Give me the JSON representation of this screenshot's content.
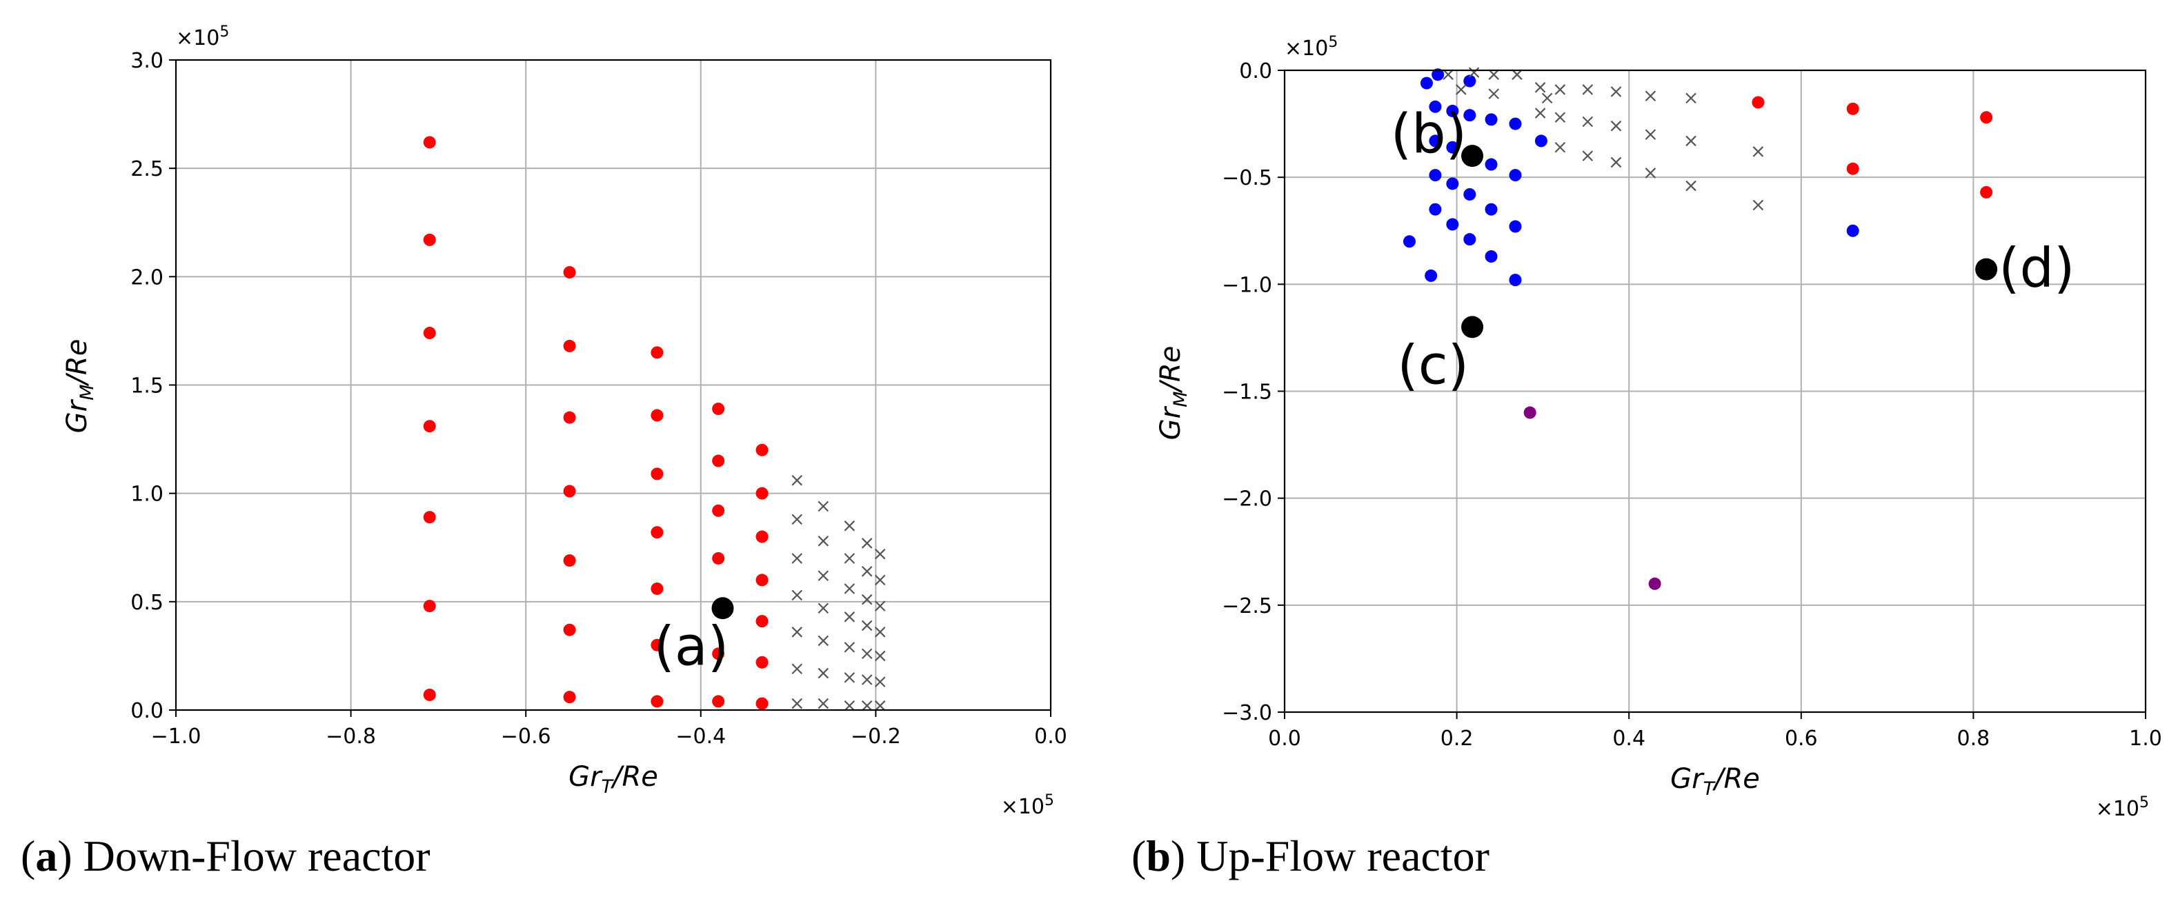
{
  "chart_data": [
    {
      "id": "a",
      "type": "scatter",
      "caption_letter": "a",
      "caption_text": "Down-Flow reactor",
      "xlabel_main": "Gr",
      "xlabel_sub": "T",
      "xlabel_tail": "/Re",
      "ylabel_main": "Gr",
      "ylabel_sub": "M",
      "ylabel_tail": "/Re",
      "x_multiplier": "×10",
      "x_multiplier_exp": "5",
      "y_multiplier": "×10",
      "y_multiplier_exp": "5",
      "xlim": [
        -1.0,
        0.0
      ],
      "ylim": [
        0.0,
        3.0
      ],
      "xticks": [
        -1.0,
        -0.8,
        -0.6,
        -0.4,
        -0.2,
        0.0
      ],
      "xtick_labels": [
        "−1.0",
        "−0.8",
        "−0.6",
        "−0.4",
        "−0.2",
        "0.0"
      ],
      "yticks": [
        0.0,
        0.5,
        1.0,
        1.5,
        2.0,
        2.5,
        3.0
      ],
      "ytick_labels": [
        "0.0",
        "0.5",
        "1.0",
        "1.5",
        "2.0",
        "2.5",
        "3.0"
      ],
      "grid": true,
      "series": [
        {
          "name": "red",
          "marker": "dot",
          "color": "#ff0000",
          "points": [
            [
              -0.71,
              0.07
            ],
            [
              -0.71,
              0.48
            ],
            [
              -0.71,
              0.89
            ],
            [
              -0.71,
              1.31
            ],
            [
              -0.71,
              1.74
            ],
            [
              -0.71,
              2.17
            ],
            [
              -0.71,
              2.62
            ],
            [
              -0.55,
              0.06
            ],
            [
              -0.55,
              0.37
            ],
            [
              -0.55,
              0.69
            ],
            [
              -0.55,
              1.01
            ],
            [
              -0.55,
              1.35
            ],
            [
              -0.55,
              1.68
            ],
            [
              -0.55,
              2.02
            ],
            [
              -0.45,
              0.04
            ],
            [
              -0.45,
              0.3
            ],
            [
              -0.45,
              0.56
            ],
            [
              -0.45,
              0.82
            ],
            [
              -0.45,
              1.09
            ],
            [
              -0.45,
              1.36
            ],
            [
              -0.45,
              1.65
            ],
            [
              -0.38,
              0.04
            ],
            [
              -0.38,
              0.26
            ],
            [
              -0.38,
              0.7
            ],
            [
              -0.38,
              0.92
            ],
            [
              -0.38,
              1.15
            ],
            [
              -0.38,
              1.39
            ],
            [
              -0.33,
              0.03
            ],
            [
              -0.33,
              0.22
            ],
            [
              -0.33,
              0.41
            ],
            [
              -0.33,
              0.6
            ],
            [
              -0.33,
              0.8
            ],
            [
              -0.33,
              1.0
            ],
            [
              -0.33,
              1.2
            ]
          ]
        },
        {
          "name": "gray-x",
          "marker": "x",
          "color": "#555555",
          "points": [
            [
              -0.29,
              0.03
            ],
            [
              -0.29,
              0.19
            ],
            [
              -0.29,
              0.36
            ],
            [
              -0.29,
              0.53
            ],
            [
              -0.29,
              0.7
            ],
            [
              -0.29,
              0.88
            ],
            [
              -0.29,
              1.06
            ],
            [
              -0.26,
              0.03
            ],
            [
              -0.26,
              0.17
            ],
            [
              -0.26,
              0.32
            ],
            [
              -0.26,
              0.47
            ],
            [
              -0.26,
              0.62
            ],
            [
              -0.26,
              0.78
            ],
            [
              -0.26,
              0.94
            ],
            [
              -0.23,
              0.02
            ],
            [
              -0.23,
              0.15
            ],
            [
              -0.23,
              0.29
            ],
            [
              -0.23,
              0.43
            ],
            [
              -0.23,
              0.56
            ],
            [
              -0.23,
              0.7
            ],
            [
              -0.23,
              0.85
            ],
            [
              -0.21,
              0.02
            ],
            [
              -0.21,
              0.14
            ],
            [
              -0.21,
              0.26
            ],
            [
              -0.21,
              0.39
            ],
            [
              -0.21,
              0.51
            ],
            [
              -0.21,
              0.64
            ],
            [
              -0.21,
              0.77
            ],
            [
              -0.195,
              0.02
            ],
            [
              -0.195,
              0.13
            ],
            [
              -0.195,
              0.25
            ],
            [
              -0.195,
              0.36
            ],
            [
              -0.195,
              0.48
            ],
            [
              -0.195,
              0.6
            ],
            [
              -0.195,
              0.72
            ]
          ]
        }
      ],
      "annotations": [
        {
          "text": "(a)",
          "x": -0.375,
          "y": 0.47
        }
      ]
    },
    {
      "id": "b",
      "type": "scatter",
      "caption_letter": "b",
      "caption_text": "Up-Flow reactor",
      "xlabel_main": "Gr",
      "xlabel_sub": "T",
      "xlabel_tail": "/Re",
      "ylabel_main": "Gr",
      "ylabel_sub": "M",
      "ylabel_tail": "/Re",
      "x_multiplier": "×10",
      "x_multiplier_exp": "5",
      "y_multiplier": "×10",
      "y_multiplier_exp": "5",
      "xlim": [
        0.0,
        1.0
      ],
      "ylim": [
        -3.0,
        0.0
      ],
      "xticks": [
        0.0,
        0.2,
        0.4,
        0.6,
        0.8,
        1.0
      ],
      "xtick_labels": [
        "0.0",
        "0.2",
        "0.4",
        "0.6",
        "0.8",
        "1.0"
      ],
      "yticks": [
        -3.0,
        -2.5,
        -2.0,
        -1.5,
        -1.0,
        -0.5,
        0.0
      ],
      "ytick_labels": [
        "−3.0",
        "−2.5",
        "−2.0",
        "−1.5",
        "−1.0",
        "−0.5",
        "0.0"
      ],
      "grid": true,
      "series": [
        {
          "name": "blue",
          "marker": "dot",
          "color": "#0000ff",
          "points": [
            [
              0.145,
              -0.8
            ],
            [
              0.17,
              -0.96
            ],
            [
              0.165,
              -0.06
            ],
            [
              0.175,
              -0.17
            ],
            [
              0.175,
              -0.33
            ],
            [
              0.175,
              -0.49
            ],
            [
              0.175,
              -0.65
            ],
            [
              0.178,
              -0.02
            ],
            [
              0.195,
              -0.19
            ],
            [
              0.195,
              -0.36
            ],
            [
              0.195,
              -0.53
            ],
            [
              0.195,
              -0.72
            ],
            [
              0.215,
              -0.05
            ],
            [
              0.215,
              -0.21
            ],
            [
              0.215,
              -0.58
            ],
            [
              0.215,
              -0.79
            ],
            [
              0.24,
              -0.23
            ],
            [
              0.24,
              -0.44
            ],
            [
              0.24,
              -0.65
            ],
            [
              0.24,
              -0.87
            ],
            [
              0.268,
              -0.25
            ],
            [
              0.268,
              -0.49
            ],
            [
              0.268,
              -0.73
            ],
            [
              0.268,
              -0.98
            ],
            [
              0.298,
              -0.33
            ],
            [
              0.66,
              -0.75
            ]
          ]
        },
        {
          "name": "gray-x",
          "marker": "x",
          "color": "#555555",
          "points": [
            [
              0.19,
              -0.02
            ],
            [
              0.205,
              -0.09
            ],
            [
              0.22,
              -0.01
            ],
            [
              0.243,
              -0.02
            ],
            [
              0.243,
              -0.11
            ],
            [
              0.27,
              -0.02
            ],
            [
              0.297,
              -0.08
            ],
            [
              0.297,
              -0.2
            ],
            [
              0.305,
              -0.13
            ],
            [
              0.32,
              -0.09
            ],
            [
              0.32,
              -0.22
            ],
            [
              0.32,
              -0.36
            ],
            [
              0.352,
              -0.09
            ],
            [
              0.352,
              -0.24
            ],
            [
              0.352,
              -0.4
            ],
            [
              0.385,
              -0.1
            ],
            [
              0.385,
              -0.26
            ],
            [
              0.385,
              -0.43
            ],
            [
              0.425,
              -0.12
            ],
            [
              0.425,
              -0.3
            ],
            [
              0.425,
              -0.48
            ],
            [
              0.472,
              -0.13
            ],
            [
              0.472,
              -0.33
            ],
            [
              0.472,
              -0.54
            ],
            [
              0.55,
              -0.38
            ],
            [
              0.55,
              -0.63
            ]
          ]
        },
        {
          "name": "red",
          "marker": "dot",
          "color": "#ff0000",
          "points": [
            [
              0.55,
              -0.15
            ],
            [
              0.66,
              -0.18
            ],
            [
              0.66,
              -0.46
            ],
            [
              0.815,
              -0.22
            ],
            [
              0.815,
              -0.57
            ]
          ]
        },
        {
          "name": "purple",
          "marker": "dot",
          "color": "#800080",
          "points": [
            [
              0.285,
              -1.6
            ],
            [
              0.43,
              -2.4
            ]
          ]
        }
      ],
      "annotations": [
        {
          "text": "(b)",
          "x": 0.218,
          "y": -0.4
        },
        {
          "text": "(c)",
          "x": 0.218,
          "y": -1.2
        },
        {
          "text": "(d)",
          "x": 0.815,
          "y": -0.93
        }
      ]
    }
  ]
}
